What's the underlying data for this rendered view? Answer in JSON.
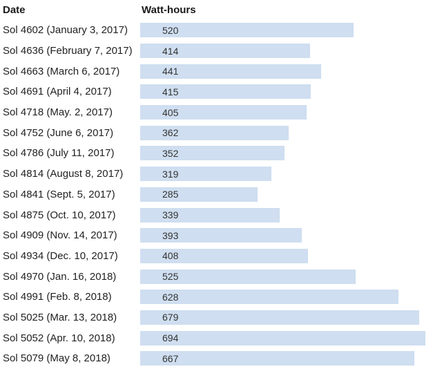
{
  "table_header": {
    "date": "Date",
    "watt_hours": "Watt-hours"
  },
  "colors": {
    "background": "#ffffff",
    "bar_fill": "#cfdef0",
    "header_text": "#1a1a1a",
    "label_text": "#222222",
    "value_text": "#333333"
  },
  "chart_data": {
    "type": "bar",
    "orientation": "horizontal",
    "title": "",
    "xlabel": "Watt-hours",
    "ylabel": "Date",
    "xlim": [
      0,
      700
    ],
    "grid": false,
    "legend": false,
    "value_labels": "inside-bar-left",
    "categories": [
      "Sol 4602 (January 3, 2017)",
      "Sol 4636 (February 7, 2017)",
      "Sol 4663 (March 6, 2017)",
      "Sol 4691 (April 4, 2017)",
      "Sol 4718 (May. 2, 2017)",
      "Sol 4752 (June 6, 2017)",
      "Sol 4786 (July 11, 2017)",
      "Sol 4814 (August 8, 2017)",
      "Sol 4841 (Sept. 5, 2017)",
      "Sol 4875 (Oct. 10, 2017)",
      "Sol 4909 (Nov. 14, 2017)",
      "Sol 4934 (Dec. 10, 2017)",
      "Sol 4970 (Jan. 16, 2018)",
      "Sol 4991 (Feb. 8, 2018)",
      "Sol 5025 (Mar. 13, 2018)",
      "Sol 5052 (Apr. 10, 2018)",
      "Sol 5079 (May 8, 2018)"
    ],
    "values": [
      520,
      414,
      441,
      415,
      405,
      362,
      352,
      319,
      285,
      339,
      393,
      408,
      525,
      628,
      679,
      694,
      667
    ]
  }
}
